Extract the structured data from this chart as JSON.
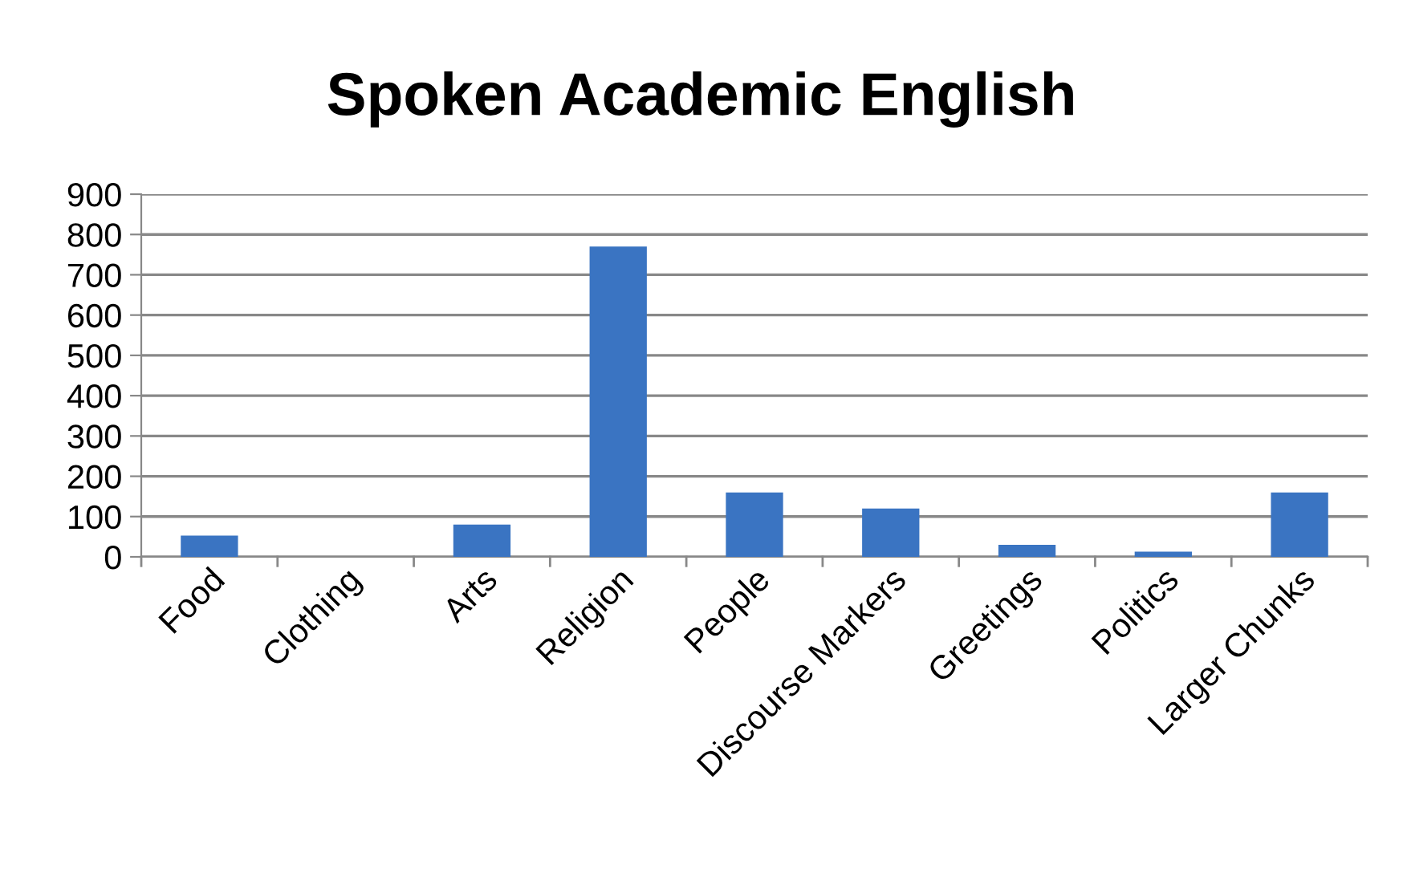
{
  "chart_data": {
    "type": "bar",
    "title": "Spoken Academic English",
    "categories": [
      "Food",
      "Clothing",
      "Arts",
      "Religion",
      "People",
      "Discourse Markers",
      "Greetings",
      "Politics",
      "Larger Chunks"
    ],
    "values": [
      53,
      0,
      80,
      770,
      160,
      120,
      30,
      13,
      160
    ],
    "color": "#3a74c2",
    "ylim": [
      0,
      900
    ],
    "yticks": [
      0,
      100,
      200,
      300,
      400,
      500,
      600,
      700,
      800,
      900
    ],
    "grid": "y",
    "legend": false
  }
}
